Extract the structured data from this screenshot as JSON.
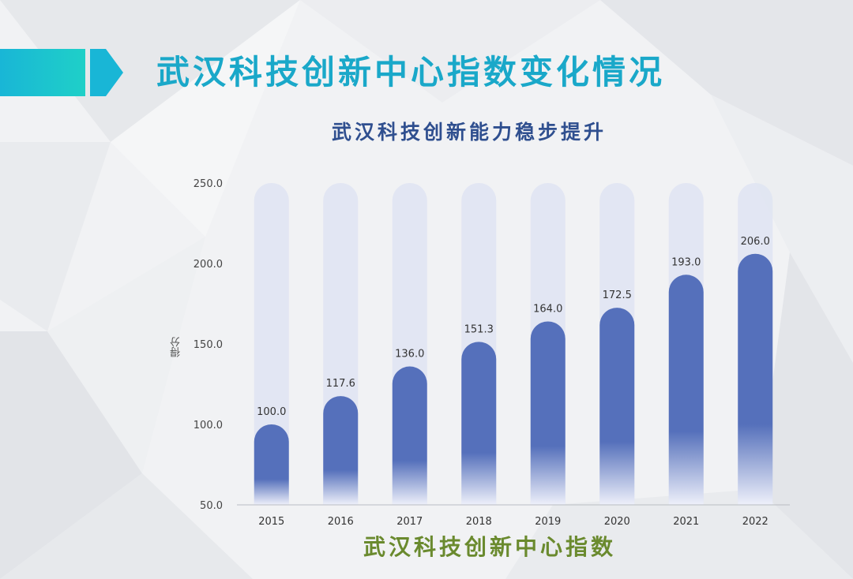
{
  "title": "武汉科技创新中心指数变化情况",
  "colors": {
    "title": "#1aa8c9",
    "subtitle": "#2f4f8f",
    "xlabel": "#6a8a2e",
    "bar": "#5570bb",
    "bar_track": "#dfe4f2"
  },
  "chart_data": {
    "type": "bar",
    "title": "武汉科技创新能力稳步提升",
    "xlabel": "武汉科技创新中心指数",
    "ylabel": "得分",
    "categories": [
      "2015",
      "2016",
      "2017",
      "2018",
      "2019",
      "2020",
      "2021",
      "2022"
    ],
    "values": [
      100.0,
      117.6,
      136.0,
      151.3,
      164.0,
      172.5,
      193.0,
      206.0
    ],
    "data_labels": [
      "100.0",
      "117.6",
      "136.0",
      "151.3",
      "164.0",
      "172.5",
      "193.0",
      "206.0"
    ],
    "ylim": [
      50,
      250
    ],
    "yticks": [
      50,
      100,
      150,
      200,
      250
    ],
    "ytick_labels": [
      "50.0",
      "100.0",
      "150.0",
      "200.0",
      "250.0"
    ],
    "grid": false,
    "legend": "none"
  }
}
